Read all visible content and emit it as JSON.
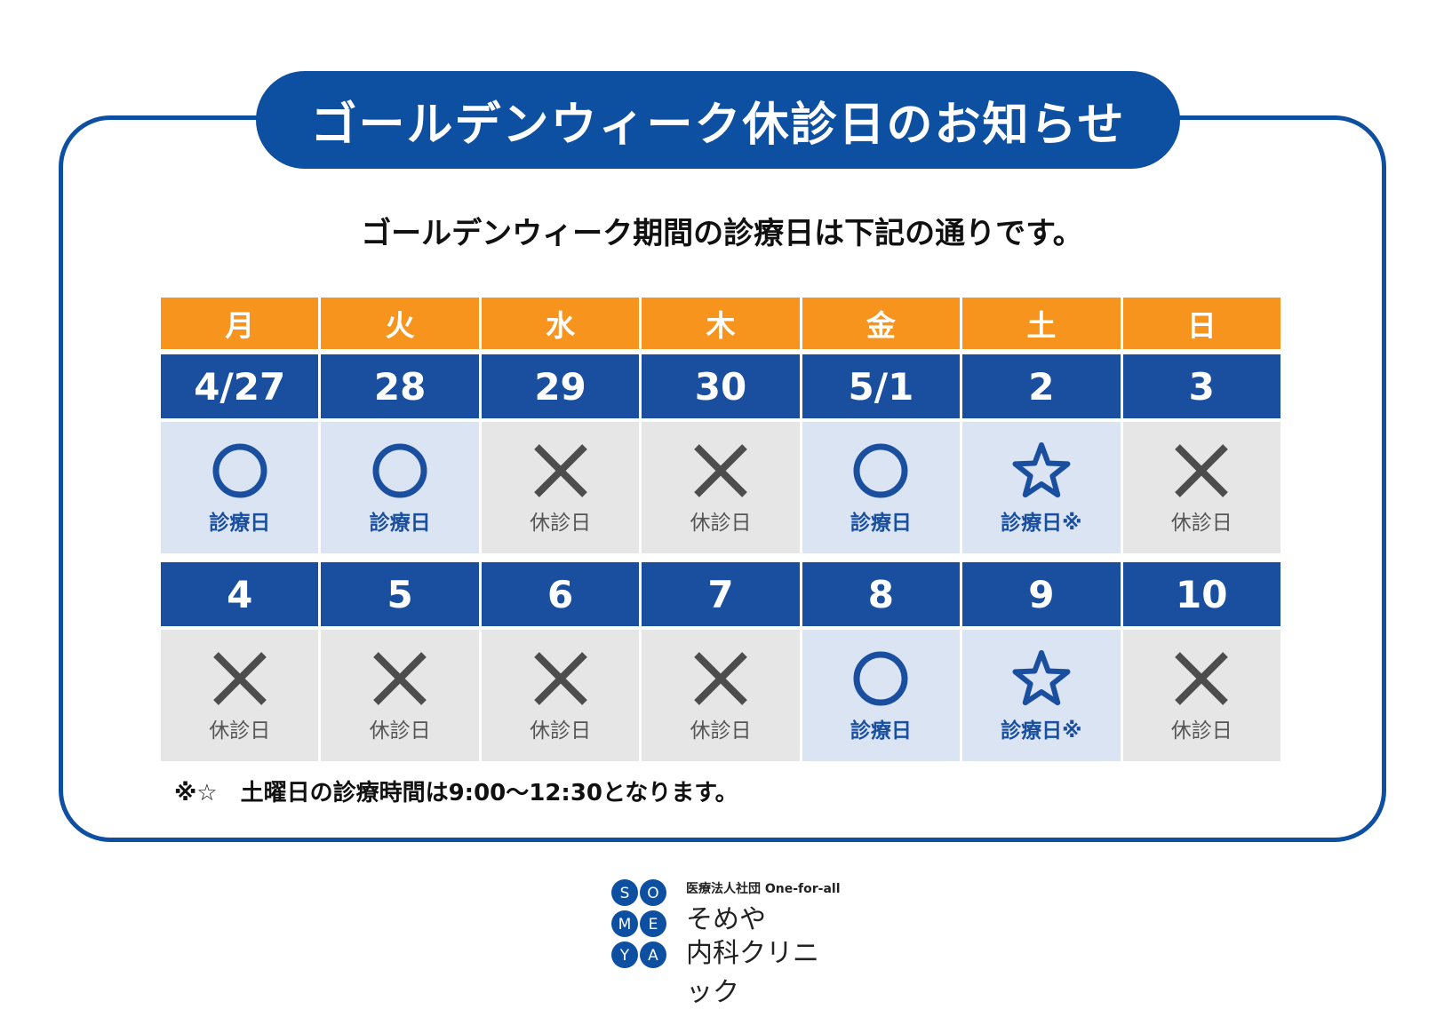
{
  "title": "ゴールデンウィーク休診日のお知らせ",
  "subtitle": "ゴールデンウィーク期間の診療日は下記の通りです。",
  "weekdays": [
    "月",
    "火",
    "水",
    "木",
    "金",
    "土",
    "日"
  ],
  "weeks": [
    {
      "dates": [
        "4/27",
        "28",
        "29",
        "30",
        "5/1",
        "2",
        "3"
      ],
      "status": [
        {
          "mark": "circle",
          "label": "診療日"
        },
        {
          "mark": "circle",
          "label": "診療日"
        },
        {
          "mark": "cross",
          "label": "休診日"
        },
        {
          "mark": "cross",
          "label": "休診日"
        },
        {
          "mark": "circle",
          "label": "診療日"
        },
        {
          "mark": "star",
          "label": "診療日※"
        },
        {
          "mark": "cross",
          "label": "休診日"
        }
      ]
    },
    {
      "dates": [
        "4",
        "5",
        "6",
        "7",
        "8",
        "9",
        "10"
      ],
      "status": [
        {
          "mark": "cross",
          "label": "休診日"
        },
        {
          "mark": "cross",
          "label": "休診日"
        },
        {
          "mark": "cross",
          "label": "休診日"
        },
        {
          "mark": "cross",
          "label": "休診日"
        },
        {
          "mark": "circle",
          "label": "診療日"
        },
        {
          "mark": "star",
          "label": "診療日※"
        },
        {
          "mark": "cross",
          "label": "休診日"
        }
      ]
    }
  ],
  "note": "※☆　土曜日の診療時間は9:00～12:30となります。",
  "logo": {
    "letters": [
      "S",
      "O",
      "M",
      "E",
      "Y",
      "A"
    ],
    "org": "医療法人社団 One-for-all",
    "name_line1": "そめや",
    "name_line2": "内科クリニック"
  },
  "colors": {
    "brand_blue": "#0d4fa0",
    "date_blue": "#1a4f9f",
    "weekday_orange": "#f7941d",
    "open_bg": "#dbe4f3",
    "closed_bg": "#e6e6e6"
  }
}
